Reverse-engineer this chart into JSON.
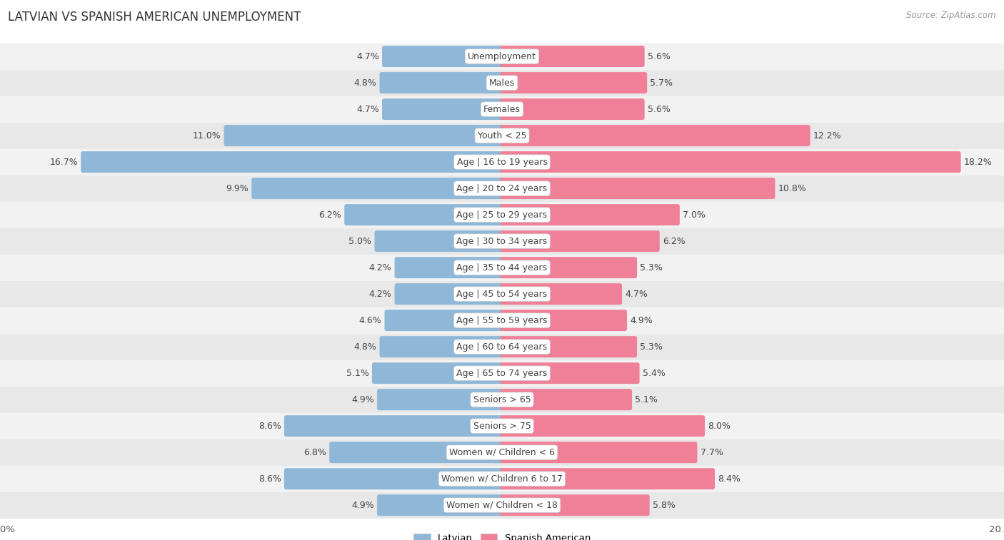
{
  "title": "LATVIAN VS SPANISH AMERICAN UNEMPLOYMENT",
  "source": "Source: ZipAtlas.com",
  "categories": [
    "Unemployment",
    "Males",
    "Females",
    "Youth < 25",
    "Age | 16 to 19 years",
    "Age | 20 to 24 years",
    "Age | 25 to 29 years",
    "Age | 30 to 34 years",
    "Age | 35 to 44 years",
    "Age | 45 to 54 years",
    "Age | 55 to 59 years",
    "Age | 60 to 64 years",
    "Age | 65 to 74 years",
    "Seniors > 65",
    "Seniors > 75",
    "Women w/ Children < 6",
    "Women w/ Children 6 to 17",
    "Women w/ Children < 18"
  ],
  "latvian": [
    4.7,
    4.8,
    4.7,
    11.0,
    16.7,
    9.9,
    6.2,
    5.0,
    4.2,
    4.2,
    4.6,
    4.8,
    5.1,
    4.9,
    8.6,
    6.8,
    8.6,
    4.9
  ],
  "spanish": [
    5.6,
    5.7,
    5.6,
    12.2,
    18.2,
    10.8,
    7.0,
    6.2,
    5.3,
    4.7,
    4.9,
    5.3,
    5.4,
    5.1,
    8.0,
    7.7,
    8.4,
    5.8
  ],
  "latvian_color": "#8fb8d8",
  "spanish_color": "#f08098",
  "row_bg_even": "#f2f2f2",
  "row_bg_odd": "#e8e8e8",
  "max_val": 20.0,
  "label_fontsize": 9,
  "value_fontsize": 9,
  "title_fontsize": 12
}
